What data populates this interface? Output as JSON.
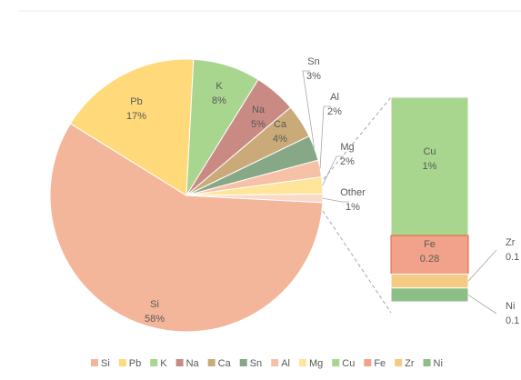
{
  "chart_data": {
    "type": "pie-of-bar",
    "pie": {
      "categories": [
        "Si",
        "Pb",
        "K",
        "Na",
        "Ca",
        "Sn",
        "Al",
        "Mg",
        "Other"
      ],
      "values": [
        58,
        17,
        8,
        5,
        4,
        3,
        2,
        2,
        1
      ],
      "value_labels": [
        "58%",
        "17%",
        "8%",
        "5%",
        "4%",
        "3%",
        "2%",
        "2%",
        "1%"
      ],
      "colors": [
        "#f4b69a",
        "#ffd97a",
        "#a8d68e",
        "#c98a84",
        "#c9aa78",
        "#87a886",
        "#f7c1a8",
        "#ffe59a",
        "#fbd9c8"
      ]
    },
    "bar": {
      "categories": [
        "Cu",
        "Fe",
        "Zr",
        "Ni"
      ],
      "values": [
        1,
        0.28,
        0.1,
        0.1
      ],
      "value_labels": [
        "1%",
        "0.28",
        "0.1",
        "0.1"
      ],
      "colors": [
        "#a8d68e",
        "#f2a28a",
        "#f5cb84",
        "#8cbf85"
      ]
    }
  }
}
